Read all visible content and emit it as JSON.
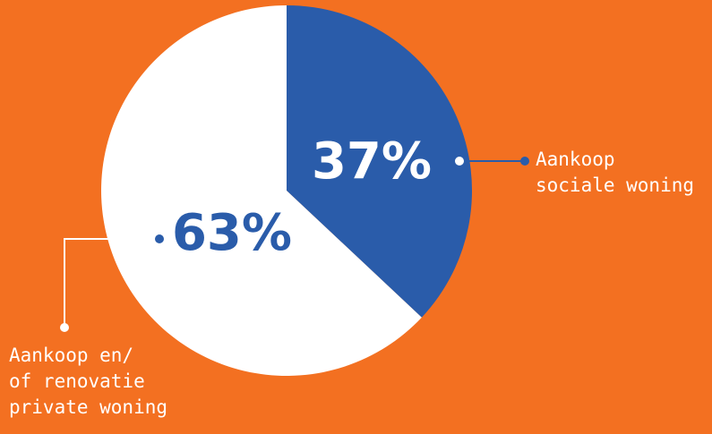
{
  "background_color": "#F37021",
  "chart_data": {
    "type": "pie",
    "slices": [
      {
        "value": 37,
        "display": "37%",
        "label_lines": [
          "Aankoop",
          "sociale woning"
        ],
        "color": "#2A5CAA",
        "text_color": "#ffffff"
      },
      {
        "value": 63,
        "display": "63%",
        "label_lines": [
          "Aankoop en/",
          "of renovatie",
          "private woning"
        ],
        "color": "#ffffff",
        "text_color": "#2A5CAA"
      }
    ],
    "start_angle": "12 o'clock",
    "direction": "clockwise",
    "legend": "callout lines to labels outside the pie"
  }
}
